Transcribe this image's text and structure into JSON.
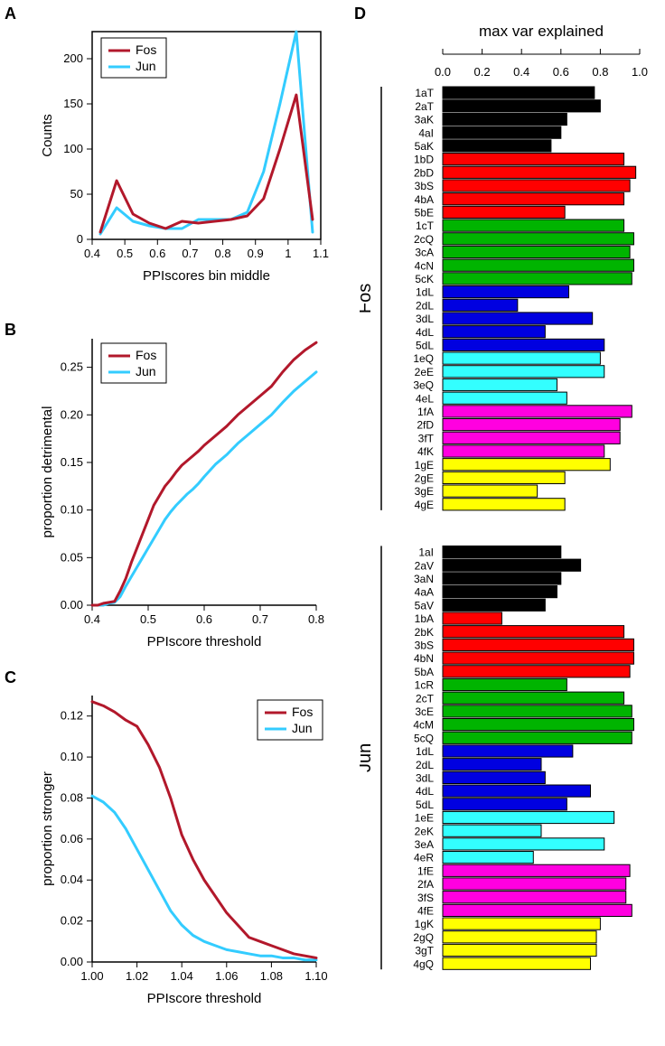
{
  "colors": {
    "fos": "#b2182b",
    "jun": "#33ccff",
    "black": "#000000",
    "white": "#ffffff"
  },
  "panelLetters": {
    "A": "A",
    "B": "B",
    "C": "C",
    "D": "D"
  },
  "legend": {
    "fos": "Fos",
    "jun": "Jun"
  },
  "panelA": {
    "title": "",
    "xlabel": "PPIscores bin middle",
    "ylabel": "Counts",
    "xlim": [
      0.4,
      1.1
    ],
    "ylim": [
      0,
      230
    ],
    "xticks": [
      0.4,
      0.5,
      0.6,
      0.7,
      0.8,
      0.9,
      1.0,
      1.1
    ],
    "yticks": [
      0,
      50,
      100,
      150,
      200
    ],
    "x": [
      0.425,
      0.475,
      0.525,
      0.575,
      0.625,
      0.675,
      0.725,
      0.775,
      0.825,
      0.875,
      0.925,
      0.975,
      1.025,
      1.075
    ],
    "fos": [
      8,
      65,
      28,
      18,
      12,
      20,
      18,
      20,
      22,
      26,
      45,
      100,
      160,
      22
    ],
    "jun": [
      6,
      35,
      20,
      15,
      12,
      12,
      22,
      22,
      22,
      30,
      75,
      150,
      230,
      8
    ],
    "lineWidth": 3
  },
  "panelB": {
    "xlabel": "PPIscore threshold",
    "ylabel": "proportion detrimental",
    "xlim": [
      0.4,
      0.8
    ],
    "ylim": [
      0.0,
      0.28
    ],
    "xticks": [
      0.4,
      0.5,
      0.6,
      0.7,
      0.8
    ],
    "yticks": [
      0.0,
      0.05,
      0.1,
      0.15,
      0.2,
      0.25
    ],
    "x": [
      0.4,
      0.41,
      0.42,
      0.43,
      0.44,
      0.45,
      0.46,
      0.47,
      0.48,
      0.49,
      0.5,
      0.51,
      0.52,
      0.53,
      0.54,
      0.55,
      0.56,
      0.57,
      0.58,
      0.59,
      0.6,
      0.62,
      0.64,
      0.66,
      0.68,
      0.7,
      0.72,
      0.74,
      0.76,
      0.78,
      0.8
    ],
    "fos": [
      0.0,
      0.0,
      0.002,
      0.003,
      0.004,
      0.015,
      0.028,
      0.045,
      0.06,
      0.075,
      0.09,
      0.105,
      0.115,
      0.125,
      0.132,
      0.14,
      0.147,
      0.152,
      0.157,
      0.162,
      0.168,
      0.178,
      0.188,
      0.2,
      0.21,
      0.22,
      0.23,
      0.245,
      0.258,
      0.268,
      0.276
    ],
    "jun": [
      0.0,
      0.0,
      0.0,
      0.002,
      0.003,
      0.009,
      0.02,
      0.03,
      0.04,
      0.05,
      0.06,
      0.07,
      0.08,
      0.09,
      0.098,
      0.105,
      0.111,
      0.117,
      0.122,
      0.128,
      0.135,
      0.148,
      0.158,
      0.17,
      0.18,
      0.19,
      0.2,
      0.213,
      0.225,
      0.235,
      0.245
    ],
    "lineWidth": 3
  },
  "panelC": {
    "xlabel": "PPIscore threshold",
    "ylabel": "proportion stronger",
    "xlim": [
      1.0,
      1.1
    ],
    "ylim": [
      0.0,
      0.13
    ],
    "xticks": [
      1.0,
      1.02,
      1.04,
      1.06,
      1.08,
      1.1
    ],
    "yticks": [
      0.0,
      0.02,
      0.04,
      0.06,
      0.08,
      0.1,
      0.12
    ],
    "x": [
      1.0,
      1.005,
      1.01,
      1.015,
      1.02,
      1.025,
      1.03,
      1.035,
      1.04,
      1.045,
      1.05,
      1.055,
      1.06,
      1.065,
      1.07,
      1.075,
      1.08,
      1.085,
      1.09,
      1.095,
      1.1
    ],
    "fos": [
      0.127,
      0.125,
      0.122,
      0.118,
      0.115,
      0.106,
      0.095,
      0.08,
      0.062,
      0.05,
      0.04,
      0.032,
      0.024,
      0.018,
      0.012,
      0.01,
      0.008,
      0.006,
      0.004,
      0.003,
      0.002
    ],
    "jun": [
      0.081,
      0.078,
      0.073,
      0.065,
      0.055,
      0.045,
      0.035,
      0.025,
      0.018,
      0.013,
      0.01,
      0.008,
      0.006,
      0.005,
      0.004,
      0.003,
      0.003,
      0.002,
      0.002,
      0.001,
      0.001
    ],
    "lineWidth": 3
  },
  "panelD": {
    "axisTitle": "max var explained",
    "xticks": [
      0.0,
      0.2,
      0.4,
      0.6,
      0.8,
      1.0
    ],
    "xlim": [
      0.0,
      1.0
    ],
    "groups": [
      {
        "label": "Fos",
        "bars": [
          {
            "name": "1aT",
            "v": 0.77,
            "c": "#000000"
          },
          {
            "name": "2aT",
            "v": 0.8,
            "c": "#000000"
          },
          {
            "name": "3aK",
            "v": 0.63,
            "c": "#000000"
          },
          {
            "name": "4aI",
            "v": 0.6,
            "c": "#000000"
          },
          {
            "name": "5aK",
            "v": 0.55,
            "c": "#000000"
          },
          {
            "name": "1bD",
            "v": 0.92,
            "c": "#ff0000"
          },
          {
            "name": "2bD",
            "v": 0.98,
            "c": "#ff0000"
          },
          {
            "name": "3bS",
            "v": 0.95,
            "c": "#ff0000"
          },
          {
            "name": "4bA",
            "v": 0.92,
            "c": "#ff0000"
          },
          {
            "name": "5bE",
            "v": 0.62,
            "c": "#ff0000"
          },
          {
            "name": "1cT",
            "v": 0.92,
            "c": "#00b400"
          },
          {
            "name": "2cQ",
            "v": 0.97,
            "c": "#00b400"
          },
          {
            "name": "3cA",
            "v": 0.95,
            "c": "#00b400"
          },
          {
            "name": "4cN",
            "v": 0.97,
            "c": "#00b400"
          },
          {
            "name": "5cK",
            "v": 0.96,
            "c": "#00b400"
          },
          {
            "name": "1dL",
            "v": 0.64,
            "c": "#0000e0"
          },
          {
            "name": "2dL",
            "v": 0.38,
            "c": "#0000e0"
          },
          {
            "name": "3dL",
            "v": 0.76,
            "c": "#0000e0"
          },
          {
            "name": "4dL",
            "v": 0.52,
            "c": "#0000e0"
          },
          {
            "name": "5dL",
            "v": 0.82,
            "c": "#0000e0"
          },
          {
            "name": "1eQ",
            "v": 0.8,
            "c": "#33ffff"
          },
          {
            "name": "2eE",
            "v": 0.82,
            "c": "#33ffff"
          },
          {
            "name": "3eQ",
            "v": 0.58,
            "c": "#33ffff"
          },
          {
            "name": "4eL",
            "v": 0.63,
            "c": "#33ffff"
          },
          {
            "name": "1fA",
            "v": 0.96,
            "c": "#ff00e0"
          },
          {
            "name": "2fD",
            "v": 0.9,
            "c": "#ff00e0"
          },
          {
            "name": "3fT",
            "v": 0.9,
            "c": "#ff00e0"
          },
          {
            "name": "4fK",
            "v": 0.82,
            "c": "#ff00e0"
          },
          {
            "name": "1gE",
            "v": 0.85,
            "c": "#ffff00"
          },
          {
            "name": "2gE",
            "v": 0.62,
            "c": "#ffff00"
          },
          {
            "name": "3gE",
            "v": 0.48,
            "c": "#ffff00"
          },
          {
            "name": "4gE",
            "v": 0.62,
            "c": "#ffff00"
          }
        ]
      },
      {
        "label": "Jun",
        "bars": [
          {
            "name": "1aI",
            "v": 0.6,
            "c": "#000000"
          },
          {
            "name": "2aV",
            "v": 0.7,
            "c": "#000000"
          },
          {
            "name": "3aN",
            "v": 0.6,
            "c": "#000000"
          },
          {
            "name": "4aA",
            "v": 0.58,
            "c": "#000000"
          },
          {
            "name": "5aV",
            "v": 0.52,
            "c": "#000000"
          },
          {
            "name": "1bA",
            "v": 0.3,
            "c": "#ff0000"
          },
          {
            "name": "2bK",
            "v": 0.92,
            "c": "#ff0000"
          },
          {
            "name": "3bS",
            "v": 0.97,
            "c": "#ff0000"
          },
          {
            "name": "4bN",
            "v": 0.97,
            "c": "#ff0000"
          },
          {
            "name": "5bA",
            "v": 0.95,
            "c": "#ff0000"
          },
          {
            "name": "1cR",
            "v": 0.63,
            "c": "#00b400"
          },
          {
            "name": "2cT",
            "v": 0.92,
            "c": "#00b400"
          },
          {
            "name": "3cE",
            "v": 0.96,
            "c": "#00b400"
          },
          {
            "name": "4cM",
            "v": 0.97,
            "c": "#00b400"
          },
          {
            "name": "5cQ",
            "v": 0.96,
            "c": "#00b400"
          },
          {
            "name": "1dL",
            "v": 0.66,
            "c": "#0000e0"
          },
          {
            "name": "2dL",
            "v": 0.5,
            "c": "#0000e0"
          },
          {
            "name": "3dL",
            "v": 0.52,
            "c": "#0000e0"
          },
          {
            "name": "4dL",
            "v": 0.75,
            "c": "#0000e0"
          },
          {
            "name": "5dL",
            "v": 0.63,
            "c": "#0000e0"
          },
          {
            "name": "1eE",
            "v": 0.87,
            "c": "#33ffff"
          },
          {
            "name": "2eK",
            "v": 0.5,
            "c": "#33ffff"
          },
          {
            "name": "3eA",
            "v": 0.82,
            "c": "#33ffff"
          },
          {
            "name": "4eR",
            "v": 0.46,
            "c": "#33ffff"
          },
          {
            "name": "1fE",
            "v": 0.95,
            "c": "#ff00e0"
          },
          {
            "name": "2fA",
            "v": 0.93,
            "c": "#ff00e0"
          },
          {
            "name": "3fS",
            "v": 0.93,
            "c": "#ff00e0"
          },
          {
            "name": "4fE",
            "v": 0.96,
            "c": "#ff00e0"
          },
          {
            "name": "1gK",
            "v": 0.8,
            "c": "#ffff00"
          },
          {
            "name": "2gQ",
            "v": 0.78,
            "c": "#ffff00"
          },
          {
            "name": "3gT",
            "v": 0.78,
            "c": "#ffff00"
          },
          {
            "name": "4gQ",
            "v": 0.75,
            "c": "#ffff00"
          }
        ]
      }
    ],
    "barHeight": 13.2,
    "labelFont": 12,
    "groupLabelFont": 20
  },
  "fonts": {
    "axisLabel": 15,
    "tick": 13,
    "legend": 14,
    "panelLetter": 18
  }
}
